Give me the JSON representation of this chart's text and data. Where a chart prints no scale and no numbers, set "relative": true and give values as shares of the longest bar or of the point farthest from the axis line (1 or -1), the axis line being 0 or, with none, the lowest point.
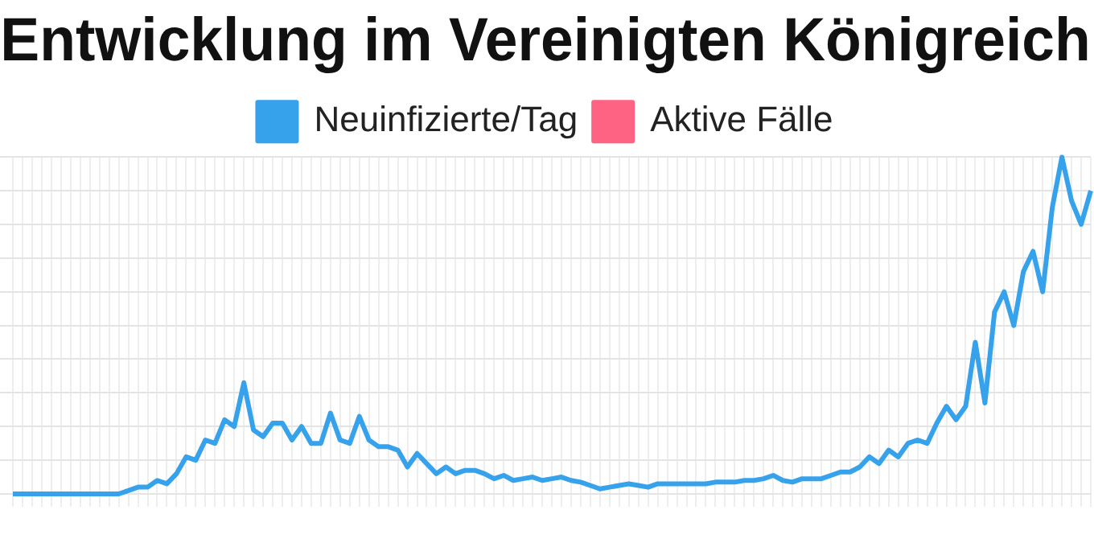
{
  "chart_data": {
    "type": "line",
    "title": "Entwicklung im Vereinigten Königreich",
    "relative": true,
    "grid": true,
    "legend": "top",
    "marker": "none",
    "line_style": "solid",
    "categories": [
      null,
      null,
      null,
      null,
      null,
      null,
      null,
      null,
      null,
      null,
      null,
      null,
      null,
      null,
      null,
      null,
      null,
      null,
      null,
      null,
      null,
      null,
      null,
      null,
      null,
      null,
      null,
      null,
      null,
      null,
      null,
      null,
      null,
      null,
      null,
      null,
      null,
      null,
      null,
      null,
      null,
      null,
      null,
      null,
      null,
      null,
      null,
      null,
      null,
      null,
      null,
      null,
      null,
      null,
      null,
      null,
      null,
      null,
      null,
      null,
      null,
      null,
      null,
      null,
      null,
      null,
      null,
      null,
      null,
      null,
      null,
      null,
      null,
      null,
      null,
      null,
      null,
      null,
      null,
      null,
      null,
      null,
      null,
      null,
      null,
      null,
      null,
      null,
      null,
      null,
      null,
      null,
      null,
      null,
      null,
      null,
      null,
      null,
      null,
      null,
      null,
      null,
      null,
      null,
      null,
      null,
      null,
      null,
      null,
      null,
      null,
      null,
      null
    ],
    "series": [
      {
        "name": "Neuinfizierte/Tag",
        "color": "#36a2eb",
        "values": [
          0,
          0,
          0,
          0,
          0,
          0,
          0,
          0,
          0,
          0,
          0,
          0,
          0.01,
          0.02,
          0.02,
          0.04,
          0.03,
          0.06,
          0.11,
          0.1,
          0.16,
          0.15,
          0.22,
          0.2,
          0.33,
          0.19,
          0.17,
          0.21,
          0.21,
          0.16,
          0.2,
          0.15,
          0.15,
          0.24,
          0.16,
          0.15,
          0.23,
          0.16,
          0.14,
          0.14,
          0.13,
          0.08,
          0.12,
          0.09,
          0.06,
          0.08,
          0.06,
          0.07,
          0.07,
          0.06,
          0.045,
          0.055,
          0.04,
          0.045,
          0.05,
          0.04,
          0.045,
          0.05,
          0.04,
          0.035,
          0.025,
          0.015,
          0.02,
          0.025,
          0.03,
          0.025,
          0.02,
          0.03,
          0.03,
          0.03,
          0.03,
          0.03,
          0.03,
          0.035,
          0.035,
          0.035,
          0.04,
          0.04,
          0.045,
          0.055,
          0.04,
          0.035,
          0.045,
          0.045,
          0.045,
          0.055,
          0.065,
          0.065,
          0.08,
          0.11,
          0.09,
          0.13,
          0.11,
          0.15,
          0.16,
          0.15,
          0.21,
          0.26,
          0.22,
          0.26,
          0.45,
          0.27,
          0.54,
          0.6,
          0.5,
          0.66,
          0.72,
          0.6,
          0.85,
          1,
          0.87,
          0.8,
          0.9
        ]
      },
      {
        "name": "Aktive Fälle",
        "color": "#ff6384",
        "values": [
          null,
          null,
          null,
          null,
          null,
          null,
          null,
          null,
          null,
          null,
          null,
          null,
          null,
          null,
          null,
          null,
          null,
          null,
          null,
          null,
          null,
          null,
          null,
          null,
          null,
          null,
          null,
          null,
          null,
          null,
          null,
          null,
          null,
          null,
          null,
          null,
          null,
          null,
          null,
          null,
          null,
          null,
          null,
          null,
          null,
          null,
          null,
          null,
          null,
          null,
          null,
          null,
          null,
          null,
          null,
          null,
          null,
          null,
          null,
          null,
          null,
          null,
          null,
          null,
          null,
          null,
          null,
          null,
          null,
          null,
          null,
          null,
          null,
          null,
          null,
          null,
          null,
          null,
          null,
          null,
          null,
          null,
          null,
          null,
          null,
          null,
          null,
          null,
          null,
          null,
          null,
          null,
          null,
          null,
          null,
          null,
          null,
          null,
          null,
          null,
          null,
          null,
          null,
          null,
          null,
          null,
          null,
          null,
          null,
          null,
          null,
          null,
          null
        ]
      }
    ]
  }
}
